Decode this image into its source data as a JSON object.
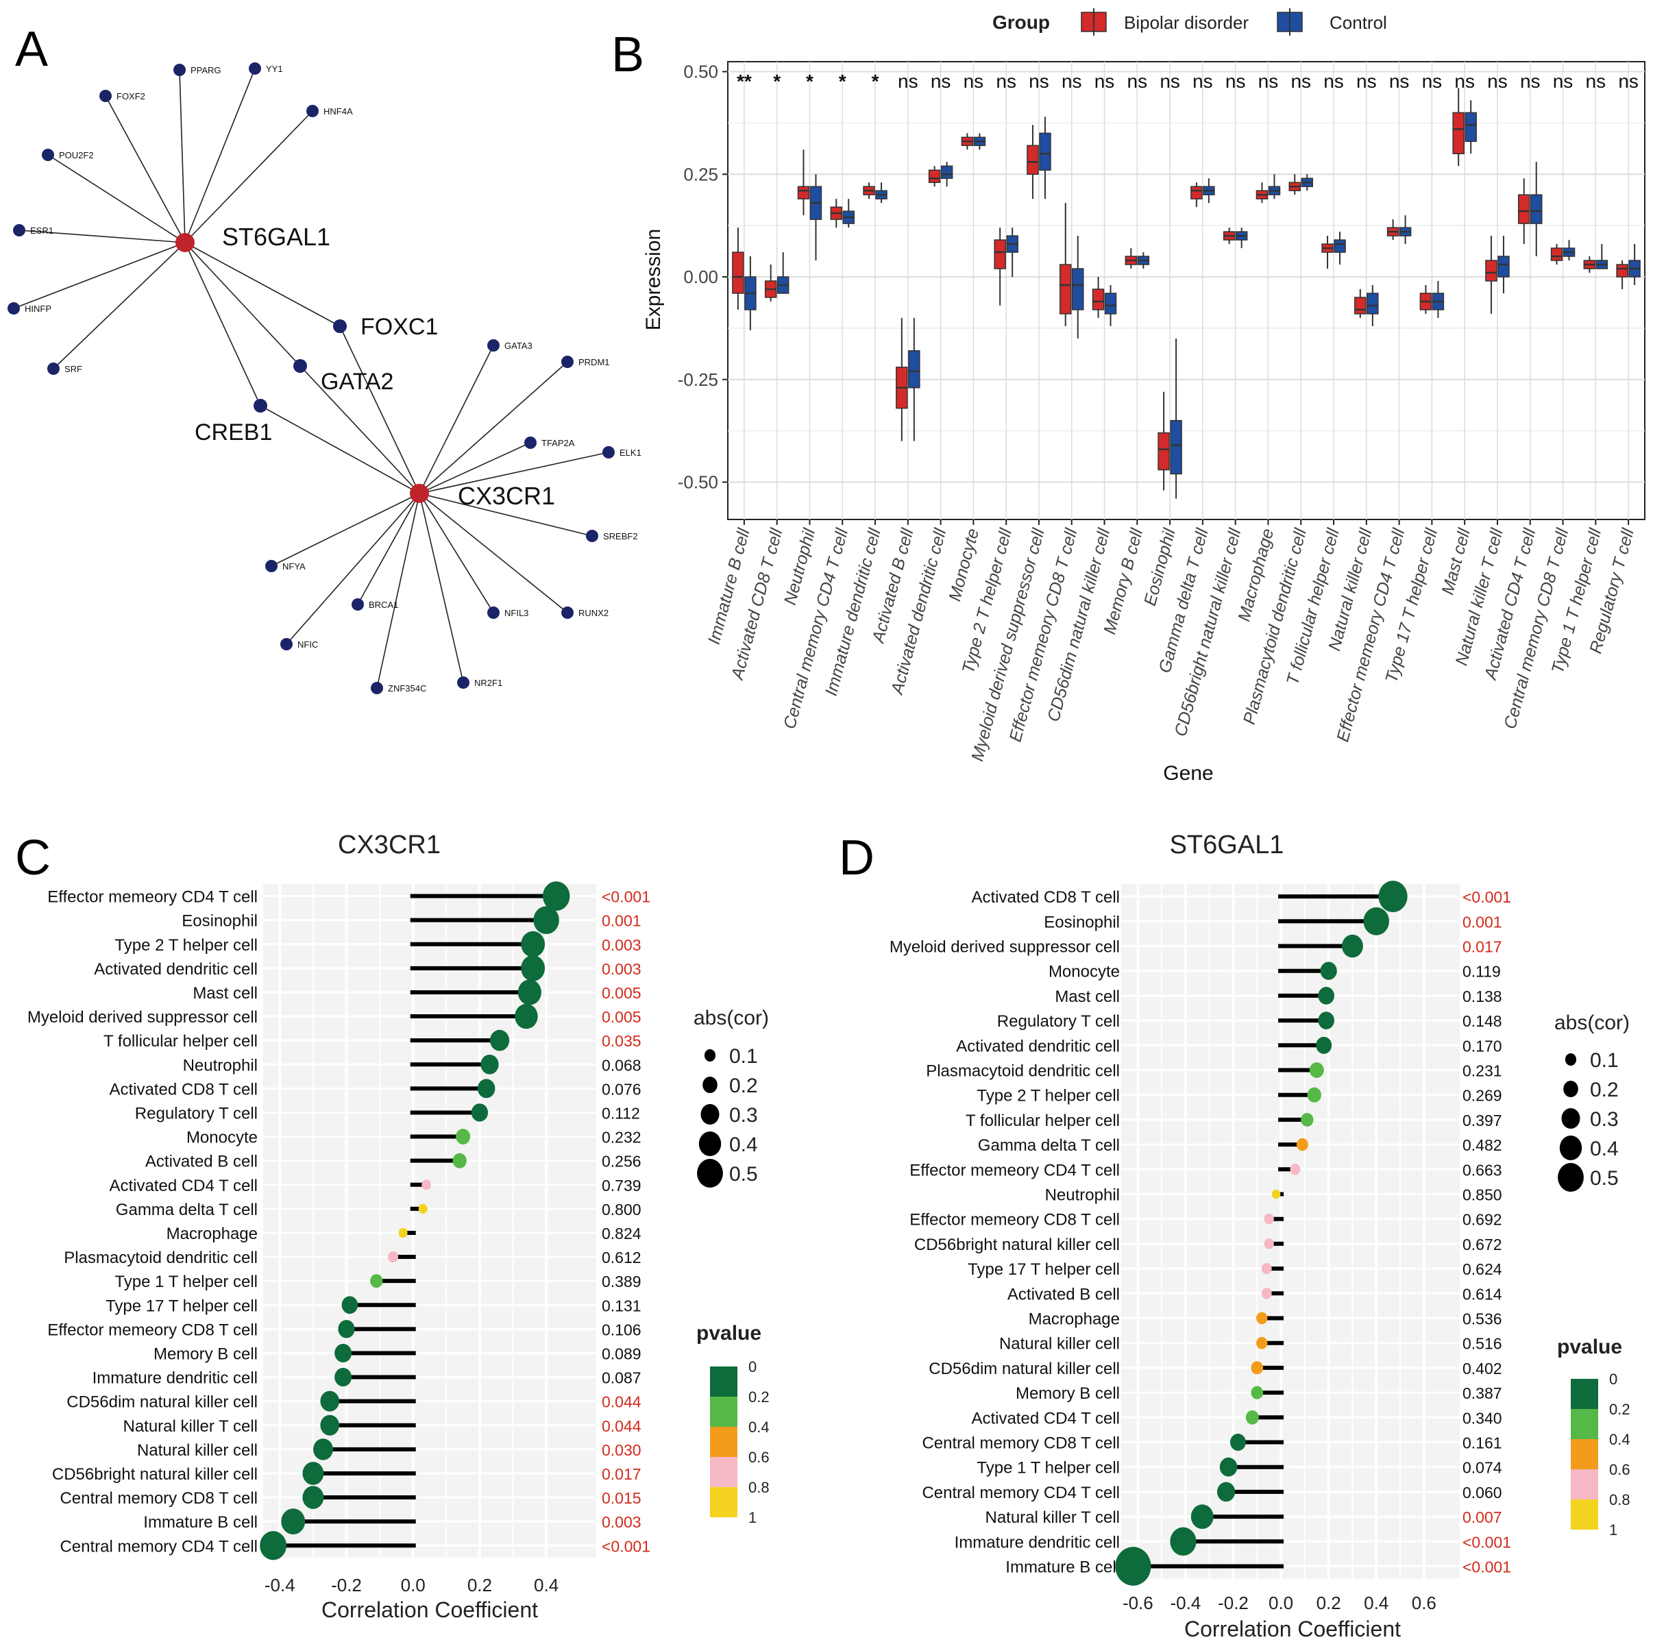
{
  "colors": {
    "bipolar": "#d42a2a",
    "control": "#1f4da0",
    "node_hub": "#c0232b",
    "node_tf": "#1b2466",
    "p0": "#0e6b3b",
    "p02": "#56b846",
    "p04": "#f39c1c",
    "p06": "#f5b8c4",
    "p08": "#f3d320",
    "sig_text": "#d22a1c",
    "panel_bg": "#f3f3f3"
  },
  "panel_labels": {
    "a": "A",
    "b": "B",
    "c": "C",
    "d": "D"
  },
  "chart_data": [
    {
      "type": "network",
      "panel": "A",
      "hubs": [
        "ST6GAL1",
        "CX3CR1"
      ],
      "shared": [
        "FOXC1",
        "GATA2",
        "CREB1"
      ],
      "tf_st6gal1": [
        "PPARG",
        "YY1",
        "FOXF2",
        "HNF4A",
        "POU2F2",
        "ESR1",
        "HINFP",
        "SRF"
      ],
      "tf_cx3cr1": [
        "GATA3",
        "PRDM1",
        "TFAP2A",
        "ELK1",
        "SREBF2",
        "NFYA",
        "BRCA1",
        "NFIL3",
        "RUNX2",
        "NFIC",
        "NR2F1",
        "ZNF354C"
      ]
    },
    {
      "type": "box",
      "panel": "B",
      "legend_title": "Group",
      "legend_items": [
        "Bipolar disorder",
        "Control"
      ],
      "xlabel": "Gene",
      "ylabel": "Expression",
      "ylim": [
        -0.6,
        0.5
      ],
      "yticks": [
        "0.50",
        "0.25",
        "0.00",
        "-0.25",
        "-0.50"
      ],
      "categories": [
        "Immature  B cell",
        "Activated CD8 T cell",
        "Neutrophil",
        "Central memory CD4 T cell",
        "Immature dendritic cell",
        "Activated B cell",
        "Activated dendritic cell",
        "Monocyte",
        "Type 2 T helper cell",
        "Myeloid derived suppressor cell",
        "Effector memeory CD8 T cell",
        "CD56dim natural killer cell",
        "Memory B cell",
        "Eosinophil",
        "Gamma delta T cell",
        "CD56bright natural killer cell",
        "Macrophage",
        "Plasmacytoid dendritic cell",
        "T follicular helper cell",
        "Natural killer cell",
        "Effector memeory CD4 T cell",
        "Type 17 T helper cell",
        "Mast cell",
        "Natural killer T cell",
        "Activated CD4 T cell",
        "Central memory CD8 T cell",
        "Type 1 T helper cell",
        "Regulatory T cell"
      ],
      "significance": [
        "**",
        "*",
        "*",
        "*",
        "*",
        "ns",
        "ns",
        "ns",
        "ns",
        "ns",
        "ns",
        "ns",
        "ns",
        "ns",
        "ns",
        "ns",
        "ns",
        "ns",
        "ns",
        "ns",
        "ns",
        "ns",
        "ns",
        "ns",
        "ns",
        "ns",
        "ns",
        "ns"
      ],
      "series": [
        {
          "name": "Bipolar disorder",
          "boxes": [
            [
              -0.08,
              -0.04,
              0.0,
              0.06,
              0.12
            ],
            [
              -0.06,
              -0.05,
              -0.03,
              -0.01,
              0.03
            ],
            [
              0.15,
              0.19,
              0.21,
              0.22,
              0.31
            ],
            [
              0.12,
              0.14,
              0.155,
              0.17,
              0.19
            ],
            [
              0.19,
              0.2,
              0.21,
              0.22,
              0.23
            ],
            [
              -0.4,
              -0.32,
              -0.27,
              -0.22,
              -0.1
            ],
            [
              0.22,
              0.23,
              0.24,
              0.26,
              0.27
            ],
            [
              0.31,
              0.32,
              0.33,
              0.34,
              0.35
            ],
            [
              -0.07,
              0.02,
              0.06,
              0.09,
              0.12
            ],
            [
              0.19,
              0.25,
              0.28,
              0.32,
              0.37
            ],
            [
              -0.12,
              -0.09,
              -0.02,
              0.03,
              0.18
            ],
            [
              -0.1,
              -0.08,
              -0.06,
              -0.03,
              0.0
            ],
            [
              0.02,
              0.03,
              0.04,
              0.05,
              0.07
            ],
            [
              -0.52,
              -0.47,
              -0.42,
              -0.38,
              -0.28
            ],
            [
              0.17,
              0.19,
              0.21,
              0.22,
              0.23
            ],
            [
              0.08,
              0.09,
              0.1,
              0.11,
              0.12
            ],
            [
              0.18,
              0.19,
              0.2,
              0.21,
              0.23
            ],
            [
              0.2,
              0.21,
              0.22,
              0.23,
              0.25
            ],
            [
              0.02,
              0.06,
              0.07,
              0.08,
              0.1
            ],
            [
              -0.1,
              -0.09,
              -0.08,
              -0.05,
              -0.03
            ],
            [
              0.09,
              0.1,
              0.11,
              0.12,
              0.14
            ],
            [
              -0.09,
              -0.08,
              -0.06,
              -0.04,
              -0.02
            ],
            [
              0.27,
              0.3,
              0.36,
              0.4,
              0.46
            ],
            [
              -0.09,
              -0.01,
              0.01,
              0.04,
              0.1
            ],
            [
              0.08,
              0.13,
              0.16,
              0.2,
              0.24
            ],
            [
              0.03,
              0.04,
              0.05,
              0.07,
              0.08
            ],
            [
              0.01,
              0.02,
              0.03,
              0.04,
              0.05
            ],
            [
              -0.03,
              0.0,
              0.02,
              0.03,
              0.04
            ]
          ]
        },
        {
          "name": "Control",
          "boxes": [
            [
              -0.13,
              -0.08,
              -0.04,
              0.0,
              0.05
            ],
            [
              -0.04,
              -0.04,
              -0.02,
              0.0,
              0.06
            ],
            [
              0.04,
              0.14,
              0.18,
              0.22,
              0.25
            ],
            [
              0.12,
              0.13,
              0.145,
              0.16,
              0.19
            ],
            [
              0.18,
              0.19,
              0.2,
              0.21,
              0.23
            ],
            [
              -0.4,
              -0.27,
              -0.23,
              -0.18,
              -0.1
            ],
            [
              0.22,
              0.24,
              0.25,
              0.27,
              0.28
            ],
            [
              0.31,
              0.32,
              0.33,
              0.34,
              0.35
            ],
            [
              0.0,
              0.06,
              0.08,
              0.1,
              0.12
            ],
            [
              0.19,
              0.26,
              0.3,
              0.35,
              0.39
            ],
            [
              -0.15,
              -0.08,
              -0.02,
              0.02,
              0.1
            ],
            [
              -0.12,
              -0.09,
              -0.07,
              -0.04,
              -0.02
            ],
            [
              0.02,
              0.03,
              0.04,
              0.05,
              0.06
            ],
            [
              -0.54,
              -0.48,
              -0.41,
              -0.35,
              -0.15
            ],
            [
              0.18,
              0.2,
              0.21,
              0.22,
              0.24
            ],
            [
              0.07,
              0.09,
              0.1,
              0.11,
              0.12
            ],
            [
              0.19,
              0.2,
              0.21,
              0.22,
              0.25
            ],
            [
              0.21,
              0.22,
              0.23,
              0.24,
              0.25
            ],
            [
              0.03,
              0.06,
              0.08,
              0.09,
              0.11
            ],
            [
              -0.12,
              -0.09,
              -0.07,
              -0.04,
              -0.02
            ],
            [
              0.08,
              0.1,
              0.11,
              0.12,
              0.15
            ],
            [
              -0.1,
              -0.08,
              -0.06,
              -0.04,
              -0.01
            ],
            [
              0.3,
              0.33,
              0.37,
              0.4,
              0.43
            ],
            [
              -0.04,
              0.0,
              0.03,
              0.05,
              0.1
            ],
            [
              0.05,
              0.13,
              0.16,
              0.2,
              0.28
            ],
            [
              0.04,
              0.05,
              0.06,
              0.07,
              0.09
            ],
            [
              0.02,
              0.02,
              0.03,
              0.04,
              0.08
            ],
            [
              -0.02,
              0.0,
              0.02,
              0.04,
              0.08
            ]
          ]
        }
      ]
    },
    {
      "type": "lollipop",
      "panel": "C",
      "title": "CX3CR1",
      "xlabel": "Correlation Coefficient",
      "xlim": [
        -0.45,
        0.55
      ],
      "xticks": [
        "-0.4",
        "-0.2",
        "0.0",
        "0.2",
        "0.4"
      ],
      "categories": [
        "Effector memeory CD4 T cell",
        "Eosinophil",
        "Type 2 T helper cell",
        "Activated dendritic cell",
        "Mast cell",
        "Myeloid derived suppressor cell",
        "T follicular helper cell",
        "Neutrophil",
        "Activated CD8 T cell",
        "Regulatory T cell",
        "Monocyte",
        "Activated B cell",
        "Activated CD4 T cell",
        "Gamma delta T cell",
        "Macrophage",
        "Plasmacytoid dendritic cell",
        "Type 1 T helper cell",
        "Type 17 T helper cell",
        "Effector memeory CD8 T cell",
        "Memory B cell",
        "Immature dendritic cell",
        "CD56dim natural killer cell",
        "Natural killer T cell",
        "Natural killer cell",
        "CD56bright natural killer cell",
        "Central memory CD8 T cell",
        "Immature  B cell",
        "Central memory CD4 T cell"
      ],
      "values": [
        0.43,
        0.4,
        0.36,
        0.36,
        0.35,
        0.34,
        0.26,
        0.23,
        0.22,
        0.2,
        0.15,
        0.14,
        0.04,
        0.03,
        -0.03,
        -0.06,
        -0.11,
        -0.19,
        -0.2,
        -0.21,
        -0.21,
        -0.25,
        -0.25,
        -0.27,
        -0.3,
        -0.3,
        -0.36,
        -0.42
      ],
      "pvalues": [
        "<0.001",
        "0.001",
        "0.003",
        "0.003",
        "0.005",
        "0.005",
        "0.035",
        "0.068",
        "0.076",
        "0.112",
        "0.232",
        "0.256",
        "0.739",
        "0.800",
        "0.824",
        "0.612",
        "0.389",
        "0.131",
        "0.106",
        "0.089",
        "0.087",
        "0.044",
        "0.044",
        "0.030",
        "0.017",
        "0.015",
        "0.003",
        "<0.001"
      ],
      "p_numeric": [
        0.0005,
        0.001,
        0.003,
        0.003,
        0.005,
        0.005,
        0.035,
        0.068,
        0.076,
        0.112,
        0.232,
        0.256,
        0.739,
        0.8,
        0.824,
        0.612,
        0.389,
        0.131,
        0.106,
        0.089,
        0.087,
        0.044,
        0.044,
        0.03,
        0.017,
        0.015,
        0.003,
        0.0005
      ],
      "size_legend_title": "abs(cor)",
      "size_legend": [
        "0.1",
        "0.2",
        "0.3",
        "0.4",
        "0.5"
      ],
      "color_legend_title": "pvalue",
      "color_legend": [
        "0",
        "0.2",
        "0.4",
        "0.6",
        "0.8",
        "1"
      ]
    },
    {
      "type": "lollipop",
      "panel": "D",
      "title": "ST6GAL1",
      "xlabel": "Correlation Coefficient",
      "xlim": [
        -0.67,
        0.75
      ],
      "xticks": [
        "-0.6",
        "-0.4",
        "-0.2",
        "0.0",
        "0.2",
        "0.4",
        "0.6"
      ],
      "categories": [
        "Activated CD8 T cell",
        "Eosinophil",
        "Myeloid derived suppressor cell",
        "Monocyte",
        "Mast cell",
        "Regulatory T cell",
        "Activated dendritic cell",
        "Plasmacytoid dendritic cell",
        "Type 2 T helper cell",
        "T follicular helper cell",
        "Gamma delta T cell",
        "Effector memeory CD4 T cell",
        "Neutrophil",
        "Effector memeory CD8 T cell",
        "CD56bright natural killer cell",
        "Type 17 T helper cell",
        "Activated B cell",
        "Macrophage",
        "Natural killer cell",
        "CD56dim natural killer cell",
        "Memory B cell",
        "Activated CD4 T cell",
        "Central memory CD8 T cell",
        "Type 1 T helper cell",
        "Central memory CD4 T cell",
        "Natural killer T cell",
        "Immature dendritic cell",
        "Immature  B cell"
      ],
      "values": [
        0.47,
        0.4,
        0.3,
        0.2,
        0.19,
        0.19,
        0.18,
        0.15,
        0.14,
        0.11,
        0.09,
        0.06,
        -0.02,
        -0.05,
        -0.05,
        -0.06,
        -0.06,
        -0.08,
        -0.08,
        -0.1,
        -0.1,
        -0.12,
        -0.18,
        -0.22,
        -0.23,
        -0.33,
        -0.41,
        -0.62
      ],
      "pvalues": [
        "<0.001",
        "0.001",
        "0.017",
        "0.119",
        "0.138",
        "0.148",
        "0.170",
        "0.231",
        "0.269",
        "0.397",
        "0.482",
        "0.663",
        "0.850",
        "0.692",
        "0.672",
        "0.624",
        "0.614",
        "0.536",
        "0.516",
        "0.402",
        "0.387",
        "0.340",
        "0.161",
        "0.074",
        "0.060",
        "0.007",
        "<0.001",
        "<0.001"
      ],
      "p_numeric": [
        0.0005,
        0.001,
        0.017,
        0.119,
        0.138,
        0.148,
        0.17,
        0.231,
        0.269,
        0.397,
        0.482,
        0.663,
        0.85,
        0.692,
        0.672,
        0.624,
        0.614,
        0.536,
        0.516,
        0.402,
        0.387,
        0.34,
        0.161,
        0.074,
        0.06,
        0.007,
        0.0005,
        0.0005
      ],
      "size_legend_title": "abs(cor)",
      "size_legend": [
        "0.1",
        "0.2",
        "0.3",
        "0.4",
        "0.5"
      ],
      "color_legend_title": "pvalue",
      "color_legend": [
        "0",
        "0.2",
        "0.4",
        "0.6",
        "0.8",
        "1"
      ]
    }
  ]
}
